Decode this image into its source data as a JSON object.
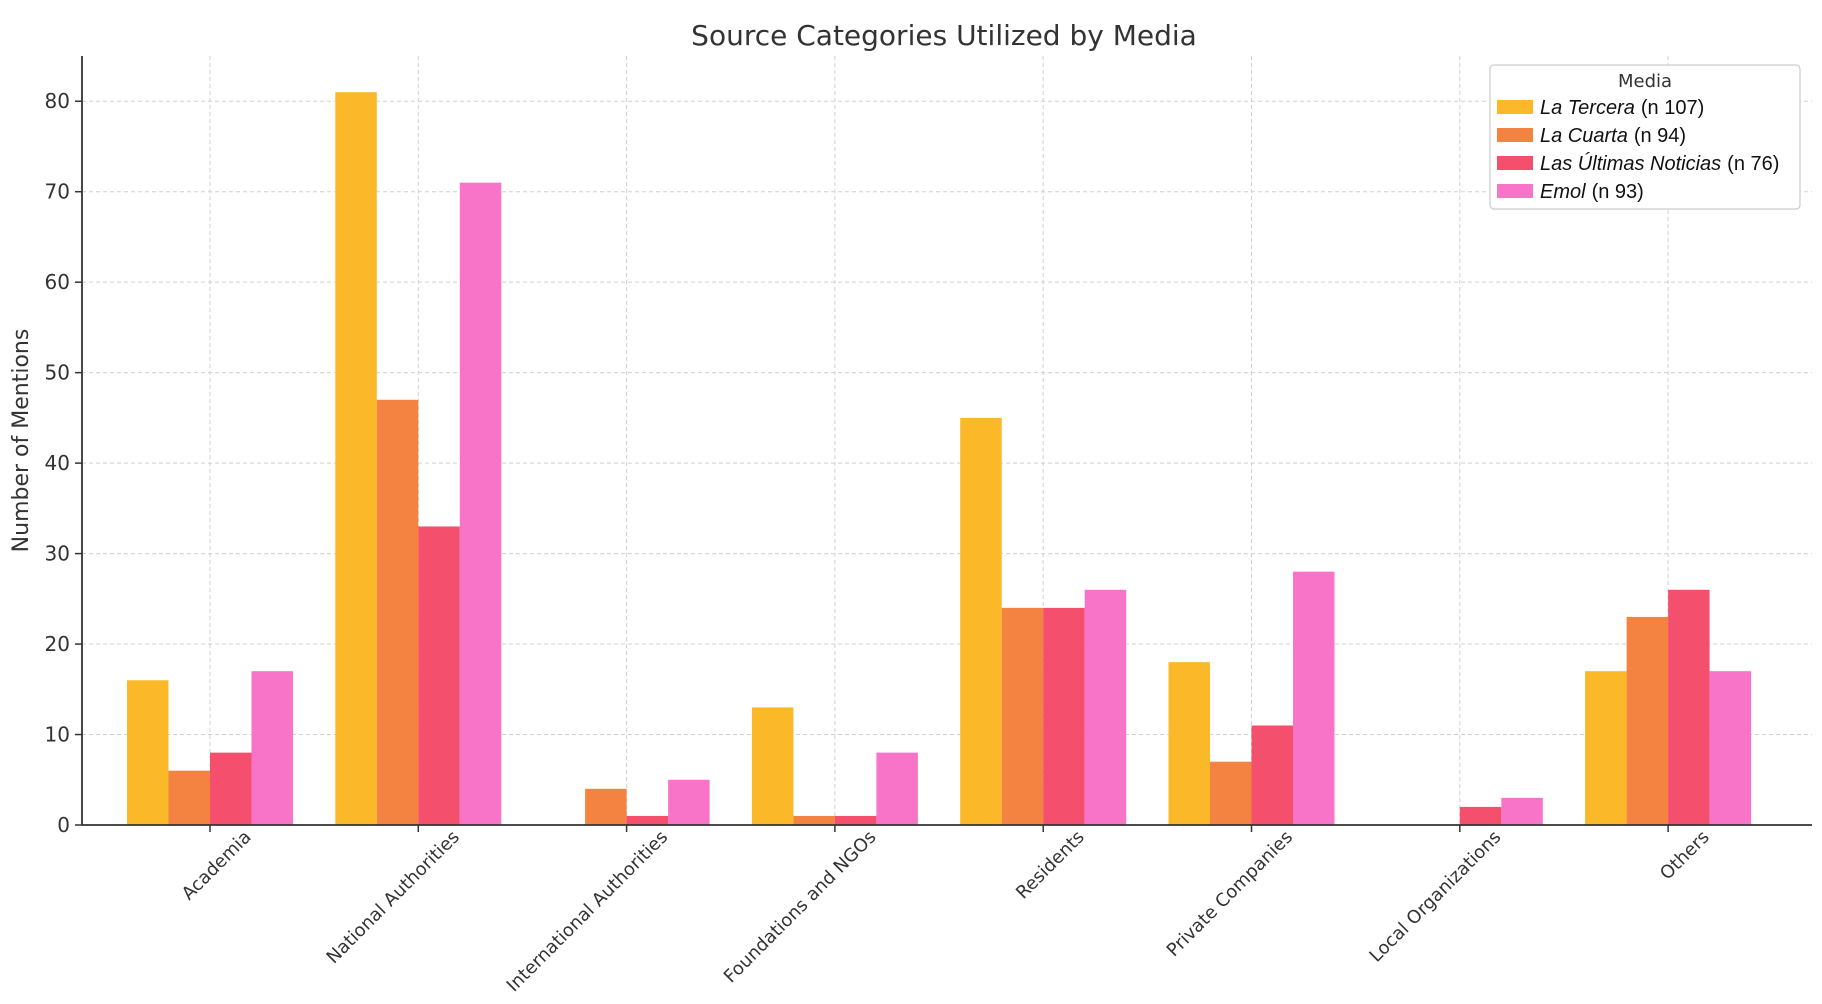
{
  "chart_data": {
    "type": "bar",
    "title": "Source Categories Utilized by Media",
    "xlabel": "",
    "ylabel": "Number of Mentions",
    "ylim": [
      0,
      85
    ],
    "yticks": [
      0,
      10,
      20,
      30,
      40,
      50,
      60,
      70,
      80
    ],
    "grid": true,
    "legend_position": "top-right",
    "legend_title": "Media",
    "categories": [
      "Academia",
      "National Authorities",
      "International Authorities",
      "Foundations and NGOs",
      "Residents",
      "Private Companies",
      "Local Organizations",
      "Others"
    ],
    "series": [
      {
        "name": "La Tercera",
        "count": "(n 107)",
        "color": "#fbb829",
        "values": [
          16,
          81,
          0,
          13,
          45,
          18,
          0,
          17
        ]
      },
      {
        "name": "La Cuarta",
        "count": "(n 94)",
        "color": "#f48342",
        "values": [
          6,
          47,
          4,
          1,
          24,
          7,
          0,
          23
        ]
      },
      {
        "name": "Las Últimas Noticias",
        "count": "(n 76)",
        "color": "#f4506e",
        "values": [
          8,
          33,
          1,
          1,
          24,
          11,
          2,
          26
        ]
      },
      {
        "name": "Emol",
        "count": "(n 93)",
        "color": "#f774c9",
        "values": [
          17,
          71,
          5,
          8,
          26,
          28,
          3,
          17
        ]
      }
    ]
  }
}
